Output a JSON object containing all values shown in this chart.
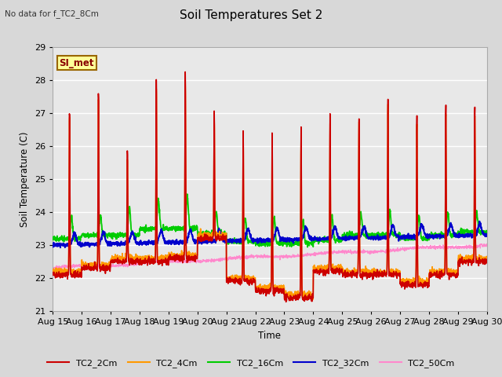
{
  "title": "Soil Temperatures Set 2",
  "subtitle": "No data for f_TC2_8Cm",
  "xlabel": "Time",
  "ylabel": "Soil Temperature (C)",
  "ylim": [
    21.0,
    29.0
  ],
  "yticks": [
    21.0,
    22.0,
    23.0,
    24.0,
    25.0,
    26.0,
    27.0,
    28.0,
    29.0
  ],
  "xtick_labels": [
    "Aug 15",
    "Aug 16",
    "Aug 17",
    "Aug 18",
    "Aug 19",
    "Aug 20",
    "Aug 21",
    "Aug 22",
    "Aug 23",
    "Aug 24",
    "Aug 25",
    "Aug 26",
    "Aug 27",
    "Aug 28",
    "Aug 29",
    "Aug 30"
  ],
  "series_colors": {
    "TC2_2Cm": "#cc0000",
    "TC2_4Cm": "#ff9900",
    "TC2_16Cm": "#00cc00",
    "TC2_32Cm": "#0000cc",
    "TC2_50Cm": "#ff88cc"
  },
  "background_color": "#d8d8d8",
  "plot_bg_color": "#e8e8e8",
  "annotation_text": "SI_met",
  "annotation_bg": "#ffff99",
  "annotation_border": "#996600",
  "figsize": [
    6.4,
    4.8
  ],
  "dpi": 100
}
